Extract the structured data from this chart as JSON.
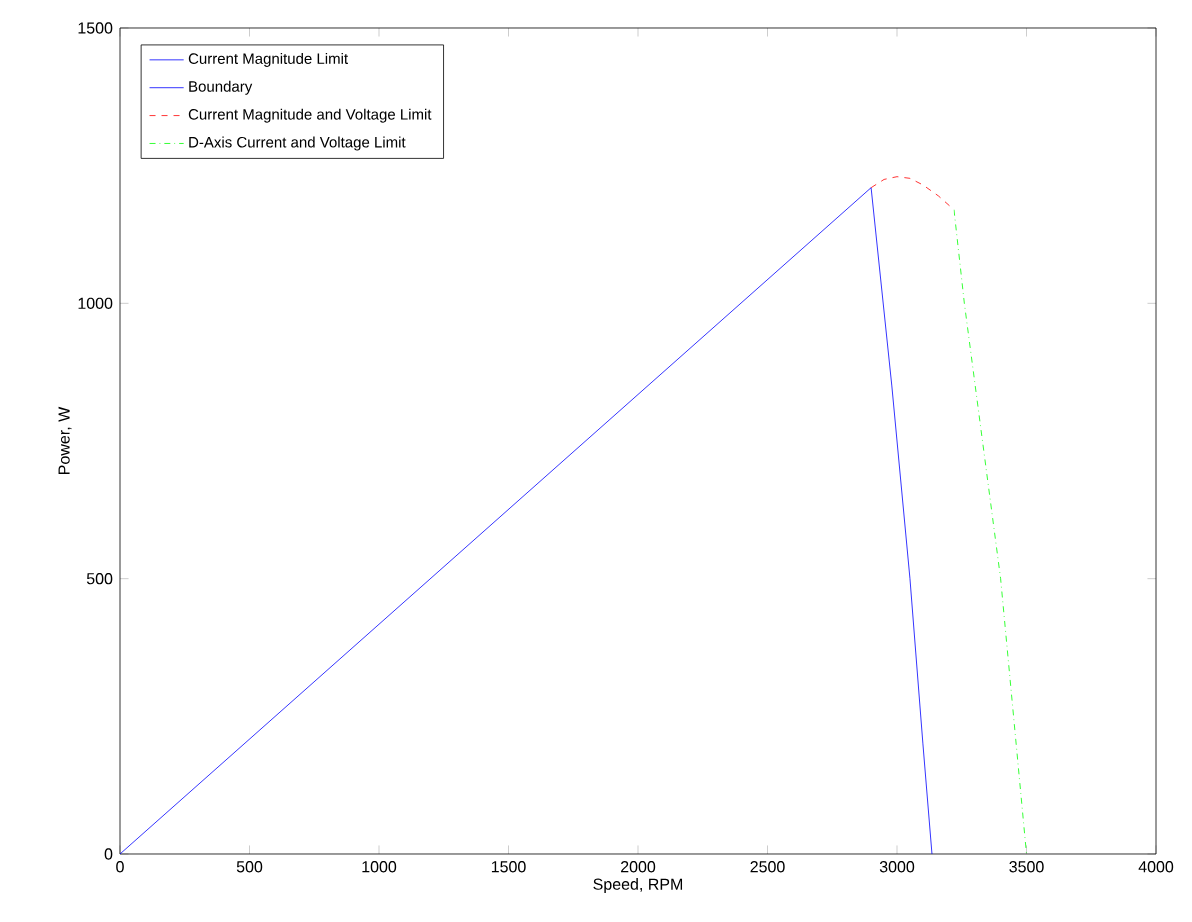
{
  "chart_data": {
    "type": "line",
    "xlabel": "Speed, RPM",
    "ylabel": "Power, W",
    "xlim": [
      0,
      4000
    ],
    "ylim": [
      0,
      1500
    ],
    "xticks": [
      0,
      500,
      1000,
      1500,
      2000,
      2500,
      3000,
      3500,
      4000
    ],
    "yticks": [
      0,
      500,
      1000,
      1500
    ],
    "legend": "top left",
    "grid": false,
    "marker": "none",
    "series": [
      {
        "name": "Current Magnitude Limit",
        "color": "#0000ff",
        "line_style": "solid",
        "x": [
          0,
          2900
        ],
        "values": [
          0,
          1210
        ]
      },
      {
        "name": "Boundary",
        "color": "#0000ff",
        "line_style": "solid",
        "x": [
          2900,
          2980,
          3050,
          3100,
          3135
        ],
        "values": [
          1210,
          850,
          500,
          200,
          0
        ]
      },
      {
        "name": "Current Magnitude and Voltage Limit",
        "color": "#ff0000",
        "line_style": "dashed",
        "x": [
          2900,
          2950,
          3000,
          3050,
          3100,
          3160,
          3220
        ],
        "values": [
          1210,
          1225,
          1230,
          1227,
          1215,
          1195,
          1170
        ]
      },
      {
        "name": "D-Axis Current and Voltage Limit",
        "color": "#00ff00",
        "line_style": "dashdot",
        "x": [
          3220,
          3260,
          3330,
          3400,
          3450,
          3490,
          3500
        ],
        "values": [
          1170,
          1000,
          750,
          500,
          250,
          50,
          0
        ]
      }
    ]
  }
}
